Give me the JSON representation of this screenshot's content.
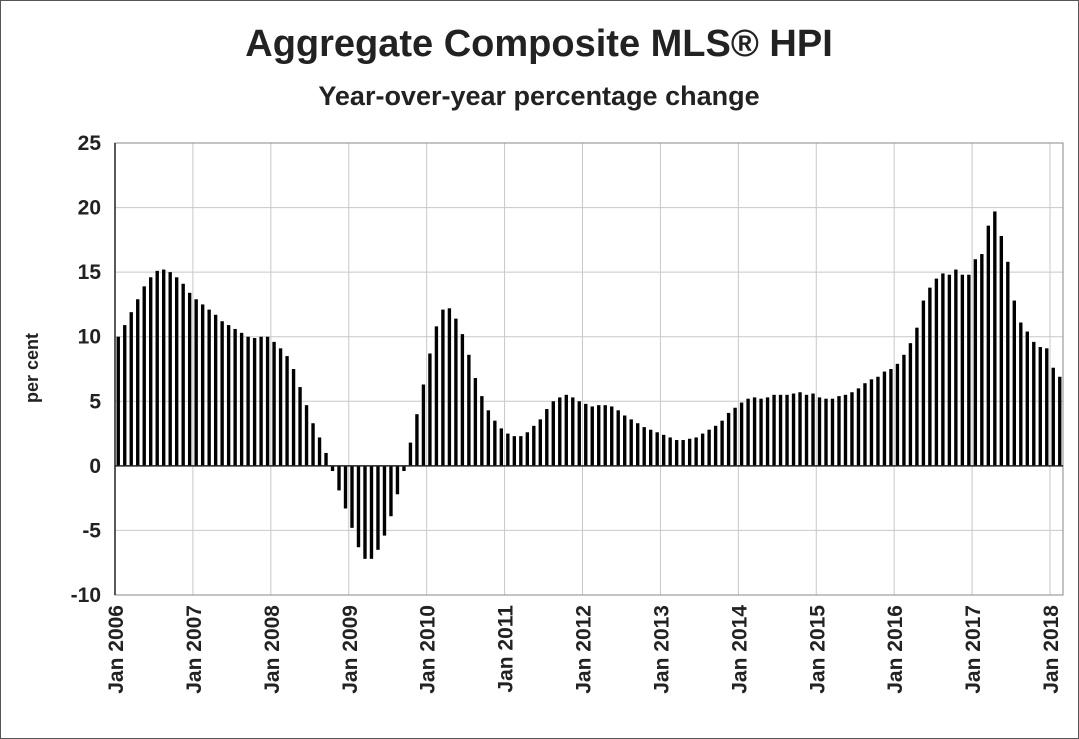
{
  "colors": {
    "bar": "#000000",
    "grid": "#c8c8c8",
    "axis": "#222222"
  },
  "chart_data": {
    "type": "bar",
    "title": "Aggregate Composite MLS® HPI",
    "subtitle": "Year-over-year percentage change",
    "ylabel": "per cent",
    "xlabel": "",
    "ylim": [
      -10,
      25
    ],
    "yticks": [
      -10,
      -5,
      0,
      5,
      10,
      15,
      20,
      25
    ],
    "grid": true,
    "xtick_labels": [
      "Jan 2006",
      "Jan 2007",
      "Jan 2008",
      "Jan 2009",
      "Jan 2010",
      "Jan 2011",
      "Jan 2012",
      "Jan 2013",
      "Jan 2014",
      "Jan 2015",
      "Jan 2016",
      "Jan 2017",
      "Jan 2018"
    ],
    "categories_start": "2006-01",
    "categories_end": "2018-01",
    "values": [
      10.0,
      10.9,
      11.9,
      12.9,
      13.9,
      14.6,
      15.1,
      15.2,
      15.0,
      14.6,
      14.1,
      13.4,
      12.9,
      12.5,
      12.1,
      11.7,
      11.2,
      10.9,
      10.6,
      10.3,
      10.0,
      9.9,
      10.0,
      10.0,
      9.6,
      9.1,
      8.5,
      7.5,
      6.1,
      4.7,
      3.3,
      2.2,
      1.0,
      -0.4,
      -1.9,
      -3.3,
      -4.8,
      -6.3,
      -7.2,
      -7.2,
      -6.5,
      -5.4,
      -3.9,
      -2.2,
      -0.4,
      1.8,
      4.0,
      6.3,
      8.7,
      10.8,
      12.1,
      12.2,
      11.4,
      10.2,
      8.6,
      6.8,
      5.4,
      4.3,
      3.5,
      2.9,
      2.5,
      2.3,
      2.3,
      2.6,
      3.1,
      3.6,
      4.4,
      5.0,
      5.3,
      5.5,
      5.3,
      5.0,
      4.8,
      4.6,
      4.7,
      4.7,
      4.6,
      4.3,
      3.9,
      3.6,
      3.3,
      3.0,
      2.8,
      2.6,
      2.4,
      2.2,
      2.0,
      2.0,
      2.1,
      2.2,
      2.5,
      2.8,
      3.1,
      3.5,
      4.1,
      4.5,
      4.9,
      5.2,
      5.3,
      5.2,
      5.3,
      5.5,
      5.5,
      5.5,
      5.6,
      5.7,
      5.5,
      5.6,
      5.3,
      5.2,
      5.2,
      5.4,
      5.5,
      5.7,
      6.0,
      6.4,
      6.7,
      6.9,
      7.3,
      7.5,
      7.9,
      8.6,
      9.5,
      10.7,
      12.8,
      13.8,
      14.5,
      14.9,
      14.8,
      15.2,
      14.8,
      14.8,
      16.0,
      16.4,
      18.6,
      19.7,
      17.8,
      15.8,
      12.8,
      11.1,
      10.4,
      9.6,
      9.2,
      9.1,
      7.6,
      6.9
    ]
  }
}
